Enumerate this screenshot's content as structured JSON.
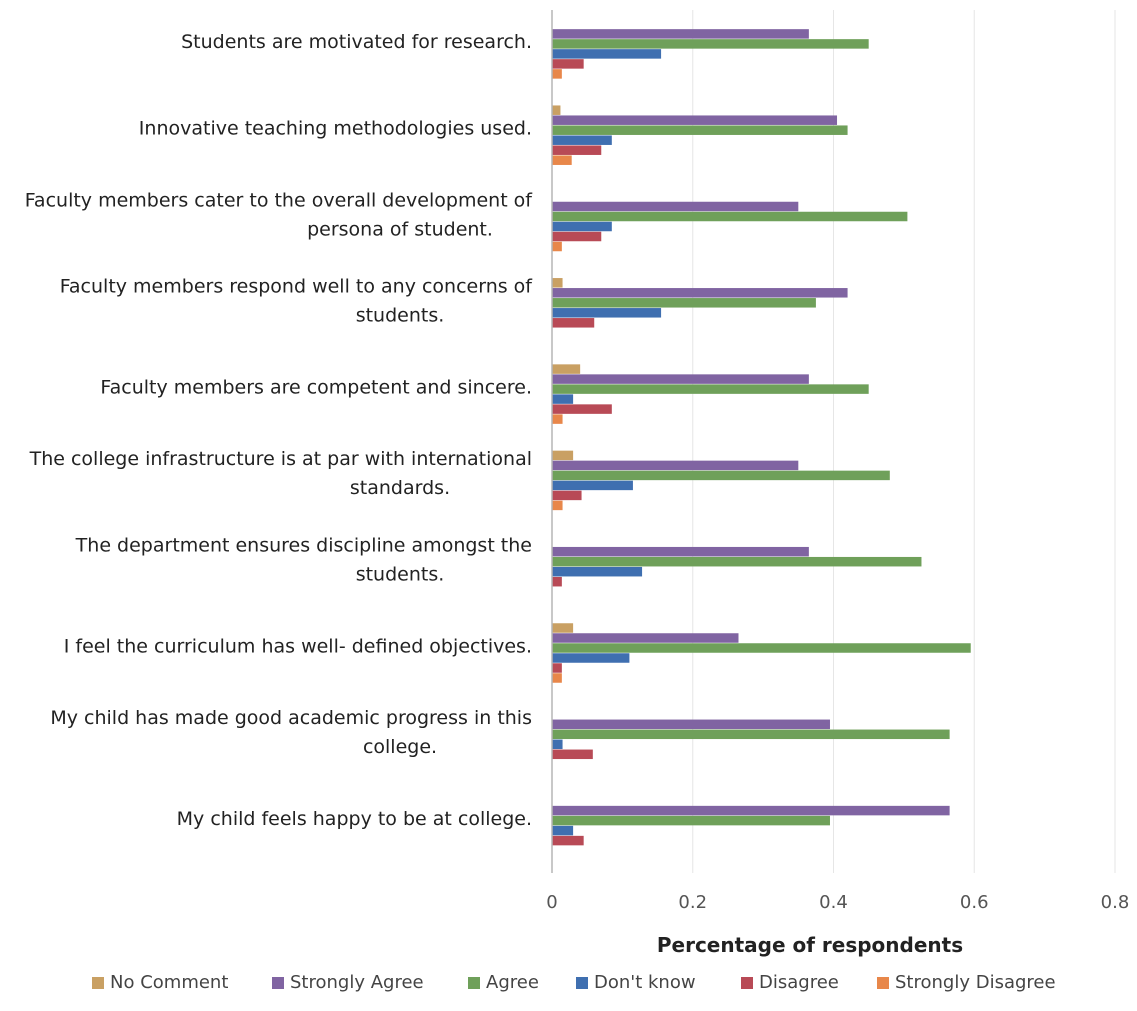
{
  "chart_data": {
    "type": "bar",
    "orientation": "horizontal",
    "title": "",
    "xlabel": "Percentage of respondents",
    "ylabel": "",
    "xlim": [
      0,
      0.8
    ],
    "x_ticks": [
      "0",
      "0.2",
      "0.4",
      "0.6",
      "0.8"
    ],
    "grid": true,
    "legend_position": "bottom",
    "categories": [
      [
        "Students are motivated for research."
      ],
      [
        "Innovative teaching methodologies used."
      ],
      [
        "Faculty members cater to the overall development of",
        "persona of student."
      ],
      [
        "Faculty members respond well to any concerns of",
        "students."
      ],
      [
        "Faculty members are competent and sincere."
      ],
      [
        "The college infrastructure is at par with international",
        "standards."
      ],
      [
        "The department ensures discipline amongst the",
        "students."
      ],
      [
        "I feel the curriculum has well- defined objectives."
      ],
      [
        "My child has made good academic progress in this",
        "college."
      ],
      [
        "My child feels happy to be at college."
      ]
    ],
    "series": [
      {
        "name": "No Comment",
        "color": "#C9A063",
        "values": [
          0.0,
          0.012,
          0.0,
          0.015,
          0.04,
          0.03,
          0.0,
          0.03,
          0.0,
          0.0
        ]
      },
      {
        "name": "Strongly Agree",
        "color": "#8064A2",
        "values": [
          0.365,
          0.405,
          0.35,
          0.42,
          0.365,
          0.35,
          0.365,
          0.265,
          0.395,
          0.565
        ]
      },
      {
        "name": "Agree",
        "color": "#6FA05A",
        "values": [
          0.45,
          0.42,
          0.505,
          0.375,
          0.45,
          0.48,
          0.525,
          0.595,
          0.565,
          0.395
        ]
      },
      {
        "name": "Don't know",
        "color": "#3F6FB0",
        "values": [
          0.155,
          0.085,
          0.085,
          0.155,
          0.03,
          0.115,
          0.128,
          0.11,
          0.015,
          0.03
        ]
      },
      {
        "name": "Disagree",
        "color": "#B84A56",
        "values": [
          0.045,
          0.07,
          0.07,
          0.06,
          0.085,
          0.042,
          0.014,
          0.014,
          0.058,
          0.045
        ]
      },
      {
        "name": "Strongly Disagree",
        "color": "#E8874A",
        "values": [
          0.014,
          0.028,
          0.014,
          0.0,
          0.015,
          0.015,
          0.0,
          0.014,
          0.0,
          0.0
        ]
      }
    ]
  }
}
